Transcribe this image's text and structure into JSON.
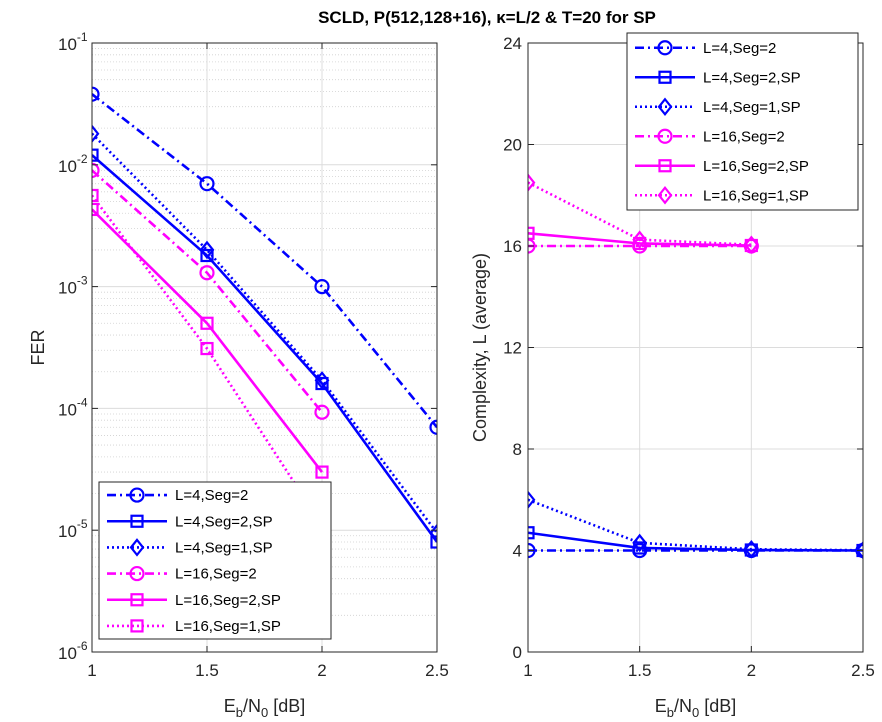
{
  "title": "SCLD, P(512,128+16), κ=L/2 & T=20 for SP",
  "chart_data": [
    {
      "type": "line",
      "id": "fer",
      "xlabel": "Eb/N0 [dB]",
      "xlabel_main": "E",
      "xlabel_sub1": "b",
      "xlabel_mid": "/N",
      "xlabel_sub2": "0",
      "xlabel_tail": " [dB]",
      "ylabel": "FER",
      "yscale": "log",
      "xlim": [
        1,
        2.5
      ],
      "ylim": [
        1e-06,
        0.1
      ],
      "xticks": [
        1,
        1.5,
        2,
        2.5
      ],
      "xtick_labels": [
        "1",
        "1.5",
        "2",
        "2.5"
      ],
      "yticks_exp": [
        -6,
        -5,
        -4,
        -3,
        -2,
        -1
      ],
      "ytick_base": "10",
      "ytick_exponents": [
        "-6",
        "-5",
        "-4",
        "-3",
        "-2",
        "-1"
      ],
      "grid": true,
      "minor_grid": true,
      "legend_position": "bottom-left",
      "series": [
        {
          "name": "L=4,Seg=2",
          "color": "#0000ff",
          "dash": "dashdot",
          "marker": "circle",
          "x": [
            1,
            1.5,
            2,
            2.5
          ],
          "y": [
            0.038,
            0.007,
            0.001,
            7e-05
          ]
        },
        {
          "name": "L=4,Seg=2,SP",
          "color": "#0000ff",
          "dash": "solid",
          "marker": "square",
          "x": [
            1,
            1.5,
            2,
            2.5
          ],
          "y": [
            0.012,
            0.0018,
            0.00016,
            8e-06
          ]
        },
        {
          "name": "L=4,Seg=1,SP",
          "color": "#0000ff",
          "dash": "dotted",
          "marker": "diamond",
          "x": [
            1,
            1.5,
            2,
            2.5
          ],
          "y": [
            0.018,
            0.002,
            0.00017,
            9.5e-06
          ]
        },
        {
          "name": "L=16,Seg=2",
          "color": "#ff00ff",
          "dash": "dashdot",
          "marker": "circle",
          "x": [
            1,
            1.5,
            2
          ],
          "y": [
            0.009,
            0.0013,
            9.3e-05
          ]
        },
        {
          "name": "L=16,Seg=2,SP",
          "color": "#ff00ff",
          "dash": "solid",
          "marker": "square",
          "x": [
            1,
            1.5,
            2
          ],
          "y": [
            0.0043,
            0.0005,
            3e-05
          ]
        },
        {
          "name": "L=16,Seg=1,SP",
          "color": "#ff00ff",
          "dash": "dotted",
          "marker": "square",
          "x": [
            1,
            1.5,
            2
          ],
          "y": [
            0.0056,
            0.00031,
            1.1e-05
          ]
        }
      ]
    },
    {
      "type": "line",
      "id": "complexity",
      "xlabel": "Eb/N0 [dB]",
      "xlabel_main": "E",
      "xlabel_sub1": "b",
      "xlabel_mid": "/N",
      "xlabel_sub2": "0",
      "xlabel_tail": " [dB]",
      "ylabel": "Complexity, L (average)",
      "yscale": "linear",
      "xlim": [
        1,
        2.5
      ],
      "ylim": [
        0,
        24
      ],
      "xticks": [
        1,
        1.5,
        2,
        2.5
      ],
      "xtick_labels": [
        "1",
        "1.5",
        "2",
        "2.5"
      ],
      "yticks": [
        0,
        4,
        8,
        12,
        16,
        20,
        24
      ],
      "ytick_labels": [
        "0",
        "4",
        "8",
        "12",
        "16",
        "20",
        "24"
      ],
      "grid": true,
      "legend_position": "top-right",
      "series": [
        {
          "name": "L=4,Seg=2",
          "color": "#0000ff",
          "dash": "dashdot",
          "marker": "circle",
          "x": [
            1,
            1.5,
            2,
            2.5
          ],
          "y": [
            4.0,
            4.0,
            4.0,
            4.0
          ]
        },
        {
          "name": "L=4,Seg=2,SP",
          "color": "#0000ff",
          "dash": "solid",
          "marker": "square",
          "x": [
            1,
            1.5,
            2,
            2.5
          ],
          "y": [
            4.7,
            4.1,
            4.02,
            4.0
          ]
        },
        {
          "name": "L=4,Seg=1,SP",
          "color": "#0000ff",
          "dash": "dotted",
          "marker": "diamond",
          "x": [
            1,
            1.5,
            2,
            2.5
          ],
          "y": [
            6.0,
            4.3,
            4.05,
            4.01
          ]
        },
        {
          "name": "L=16,Seg=2",
          "color": "#ff00ff",
          "dash": "dashdot",
          "marker": "circle",
          "x": [
            1,
            1.5,
            2
          ],
          "y": [
            16.0,
            16.0,
            16.0
          ]
        },
        {
          "name": "L=16,Seg=2,SP",
          "color": "#ff00ff",
          "dash": "solid",
          "marker": "square",
          "x": [
            1,
            1.5,
            2
          ],
          "y": [
            16.5,
            16.1,
            16.02
          ]
        },
        {
          "name": "L=16,Seg=1,SP",
          "color": "#ff00ff",
          "dash": "dotted",
          "marker": "diamond",
          "x": [
            1,
            1.5,
            2
          ],
          "y": [
            18.5,
            16.25,
            16.05
          ]
        }
      ]
    }
  ]
}
